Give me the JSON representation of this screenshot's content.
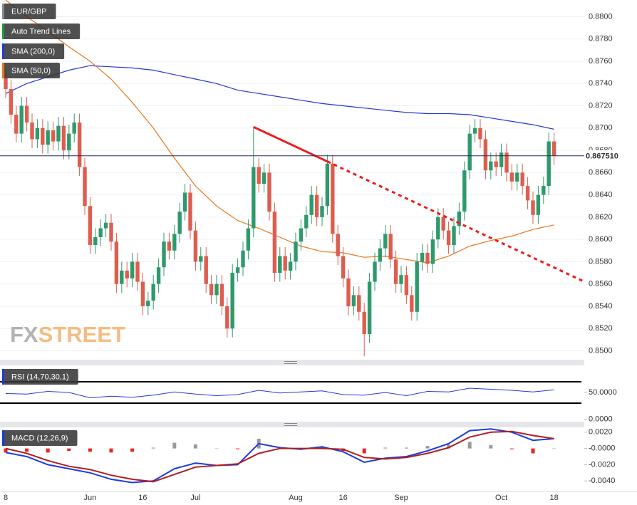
{
  "chart_data": {
    "type": "candlestick",
    "legend": [
      {
        "name": "EUR/GBP",
        "color": "#888888"
      },
      {
        "name": "Auto Trend Lines",
        "color": "#1f9a3a"
      },
      {
        "name": "SMA (200,0)",
        "color": "#2238d8"
      },
      {
        "name": "SMA (50,0)",
        "color": "#e8761c"
      }
    ],
    "watermark": [
      "FX",
      "STREET"
    ],
    "up_color": "#2e9a6c",
    "down_color": "#dd5d4f",
    "categories": [
      "8",
      null,
      null,
      null,
      null,
      null,
      null,
      null,
      null,
      null,
      null,
      null,
      null,
      null,
      null,
      null,
      "Jun",
      null,
      null,
      null,
      null,
      null,
      null,
      null,
      null,
      null,
      "16",
      null,
      null,
      null,
      null,
      null,
      null,
      null,
      null,
      null,
      "Jul",
      null,
      null,
      null,
      null,
      null,
      null,
      null,
      null,
      null,
      null,
      null,
      null,
      null,
      null,
      null,
      null,
      null,
      null,
      "Aug",
      null,
      null,
      null,
      null,
      null,
      null,
      null,
      null,
      "16",
      null,
      null,
      null,
      null,
      null,
      null,
      null,
      null,
      null,
      null,
      "Sep",
      null,
      null,
      null,
      null,
      null,
      null,
      null,
      null,
      null,
      null,
      null,
      null,
      null,
      null,
      null,
      null,
      null,
      null,
      "Oct",
      null,
      null,
      null,
      null,
      null,
      null,
      null,
      null,
      null,
      "18"
    ],
    "ohlc": [
      [
        0.8745,
        0.8753,
        0.8727,
        0.8735
      ],
      [
        0.8735,
        0.8743,
        0.8704,
        0.8712
      ],
      [
        0.8712,
        0.872,
        0.8687,
        0.8695
      ],
      [
        0.8695,
        0.8728,
        0.8687,
        0.872
      ],
      [
        0.872,
        0.8728,
        0.8697,
        0.8705
      ],
      [
        0.8705,
        0.8713,
        0.8682,
        0.869
      ],
      [
        0.869,
        0.8708,
        0.8682,
        0.87
      ],
      [
        0.87,
        0.8708,
        0.8677,
        0.8685
      ],
      [
        0.8685,
        0.8706,
        0.8677,
        0.8698
      ],
      [
        0.8698,
        0.8706,
        0.868,
        0.8688
      ],
      [
        0.8688,
        0.871,
        0.868,
        0.8702
      ],
      [
        0.8702,
        0.871,
        0.8672,
        0.868
      ],
      [
        0.868,
        0.8703,
        0.8672,
        0.8695
      ],
      [
        0.8695,
        0.8713,
        0.8687,
        0.8705
      ],
      [
        0.8705,
        0.8713,
        0.8657,
        0.8665
      ],
      [
        0.8665,
        0.8673,
        0.8622,
        0.863
      ],
      [
        0.863,
        0.8638,
        0.8587,
        0.8595
      ],
      [
        0.8595,
        0.861,
        0.8587,
        0.8602
      ],
      [
        0.8602,
        0.8618,
        0.8594,
        0.861
      ],
      [
        0.861,
        0.8623,
        0.8602,
        0.8615
      ],
      [
        0.8615,
        0.8623,
        0.859,
        0.8598
      ],
      [
        0.8598,
        0.8606,
        0.8552,
        0.856
      ],
      [
        0.856,
        0.858,
        0.8552,
        0.8572
      ],
      [
        0.8572,
        0.858,
        0.8557,
        0.8565
      ],
      [
        0.8565,
        0.8588,
        0.8557,
        0.858
      ],
      [
        0.858,
        0.8588,
        0.8554,
        0.8562
      ],
      [
        0.8562,
        0.857,
        0.8532,
        0.854
      ],
      [
        0.854,
        0.8553,
        0.8532,
        0.8545
      ],
      [
        0.8545,
        0.8568,
        0.8537,
        0.856
      ],
      [
        0.856,
        0.8583,
        0.8552,
        0.8575
      ],
      [
        0.8575,
        0.8606,
        0.8567,
        0.8598
      ],
      [
        0.8598,
        0.8606,
        0.8582,
        0.859
      ],
      [
        0.859,
        0.8613,
        0.8582,
        0.8605
      ],
      [
        0.8605,
        0.8633,
        0.8597,
        0.8625
      ],
      [
        0.8625,
        0.865,
        0.8617,
        0.8642
      ],
      [
        0.8642,
        0.865,
        0.86,
        0.8608
      ],
      [
        0.8608,
        0.8616,
        0.8572,
        0.858
      ],
      [
        0.858,
        0.8593,
        0.8572,
        0.8585
      ],
      [
        0.8585,
        0.8593,
        0.8552,
        0.856
      ],
      [
        0.856,
        0.8568,
        0.8542,
        0.855
      ],
      [
        0.855,
        0.8568,
        0.8542,
        0.856
      ],
      [
        0.856,
        0.8568,
        0.8532,
        0.854
      ],
      [
        0.854,
        0.8548,
        0.8512,
        0.852
      ],
      [
        0.852,
        0.8578,
        0.8512,
        0.857
      ],
      [
        0.857,
        0.8583,
        0.8562,
        0.8575
      ],
      [
        0.8575,
        0.8598,
        0.8567,
        0.859
      ],
      [
        0.859,
        0.8618,
        0.8582,
        0.861
      ],
      [
        0.861,
        0.8701,
        0.8602,
        0.8665
      ],
      [
        0.8665,
        0.8673,
        0.8642,
        0.865
      ],
      [
        0.865,
        0.8668,
        0.8642,
        0.866
      ],
      [
        0.866,
        0.8668,
        0.8617,
        0.8625
      ],
      [
        0.8625,
        0.8633,
        0.8562,
        0.857
      ],
      [
        0.857,
        0.8593,
        0.8562,
        0.8585
      ],
      [
        0.8585,
        0.8593,
        0.8564,
        0.8572
      ],
      [
        0.8572,
        0.8588,
        0.8564,
        0.858
      ],
      [
        0.858,
        0.8606,
        0.8572,
        0.8598
      ],
      [
        0.8598,
        0.8618,
        0.859,
        0.861
      ],
      [
        0.861,
        0.863,
        0.8602,
        0.8622
      ],
      [
        0.8622,
        0.8648,
        0.8614,
        0.864
      ],
      [
        0.864,
        0.8648,
        0.8612,
        0.862
      ],
      [
        0.862,
        0.8638,
        0.8612,
        0.863
      ],
      [
        0.863,
        0.8676,
        0.8622,
        0.8668
      ],
      [
        0.8668,
        0.8676,
        0.8597,
        0.8605
      ],
      [
        0.8605,
        0.8613,
        0.8577,
        0.8585
      ],
      [
        0.8585,
        0.8593,
        0.8557,
        0.8565
      ],
      [
        0.8565,
        0.8573,
        0.8532,
        0.854
      ],
      [
        0.854,
        0.8558,
        0.8532,
        0.855
      ],
      [
        0.855,
        0.8558,
        0.8527,
        0.8535
      ],
      [
        0.8535,
        0.8543,
        0.8495,
        0.8515
      ],
      [
        0.8515,
        0.857,
        0.8507,
        0.8562
      ],
      [
        0.8562,
        0.8588,
        0.8554,
        0.858
      ],
      [
        0.858,
        0.86,
        0.8572,
        0.8592
      ],
      [
        0.8592,
        0.8613,
        0.8584,
        0.8605
      ],
      [
        0.8605,
        0.8613,
        0.8574,
        0.8582
      ],
      [
        0.8582,
        0.859,
        0.8552,
        0.856
      ],
      [
        0.856,
        0.8576,
        0.8552,
        0.8568
      ],
      [
        0.8568,
        0.8576,
        0.8542,
        0.855
      ],
      [
        0.855,
        0.8558,
        0.8527,
        0.8535
      ],
      [
        0.8535,
        0.8588,
        0.8527,
        0.858
      ],
      [
        0.858,
        0.8596,
        0.8572,
        0.8588
      ],
      [
        0.8588,
        0.8596,
        0.857,
        0.8578
      ],
      [
        0.8578,
        0.8608,
        0.857,
        0.86
      ],
      [
        0.86,
        0.8628,
        0.8592,
        0.862
      ],
      [
        0.862,
        0.8628,
        0.86,
        0.8608
      ],
      [
        0.8608,
        0.8616,
        0.8587,
        0.8595
      ],
      [
        0.8595,
        0.862,
        0.8587,
        0.8612
      ],
      [
        0.8612,
        0.8633,
        0.8604,
        0.8625
      ],
      [
        0.8625,
        0.867,
        0.8617,
        0.8662
      ],
      [
        0.8662,
        0.8703,
        0.8654,
        0.8695
      ],
      [
        0.8695,
        0.8708,
        0.8687,
        0.87
      ],
      [
        0.87,
        0.8708,
        0.8682,
        0.869
      ],
      [
        0.869,
        0.8698,
        0.8654,
        0.8662
      ],
      [
        0.8662,
        0.8678,
        0.8654,
        0.867
      ],
      [
        0.867,
        0.8678,
        0.8657,
        0.8665
      ],
      [
        0.8665,
        0.8686,
        0.8657,
        0.8678
      ],
      [
        0.8678,
        0.8686,
        0.8652,
        0.866
      ],
      [
        0.866,
        0.8668,
        0.8644,
        0.8652
      ],
      [
        0.8652,
        0.8668,
        0.8644,
        0.866
      ],
      [
        0.866,
        0.8668,
        0.864,
        0.8648
      ],
      [
        0.8648,
        0.8656,
        0.8627,
        0.8635
      ],
      [
        0.8635,
        0.8643,
        0.8614,
        0.8622
      ],
      [
        0.8622,
        0.8648,
        0.8614,
        0.864
      ],
      [
        0.864,
        0.8656,
        0.8632,
        0.8648
      ],
      [
        0.8648,
        0.8696,
        0.864,
        0.8688
      ],
      [
        0.8688,
        0.8696,
        0.8667,
        0.8675
      ]
    ],
    "ylim": [
      0.8492,
      0.8815
    ],
    "yticks": [
      {
        "value": 0.88,
        "label": "0.8800"
      },
      {
        "value": 0.878,
        "label": "0.8780"
      },
      {
        "value": 0.876,
        "label": "0.8760"
      },
      {
        "value": 0.874,
        "label": "0.8740"
      },
      {
        "value": 0.872,
        "label": "0.8720"
      },
      {
        "value": 0.87,
        "label": "0.8700"
      },
      {
        "value": 0.868,
        "label": "0.8680"
      },
      {
        "value": 0.866,
        "label": "0.8660"
      },
      {
        "value": 0.864,
        "label": "0.8640"
      },
      {
        "value": 0.862,
        "label": "0.8620"
      },
      {
        "value": 0.86,
        "label": "0.8600"
      },
      {
        "value": 0.858,
        "label": "0.8580"
      },
      {
        "value": 0.856,
        "label": "0.8560"
      },
      {
        "value": 0.854,
        "label": "0.8540"
      },
      {
        "value": 0.852,
        "label": "0.8520"
      },
      {
        "value": 0.85,
        "label": "0.8500"
      }
    ],
    "grid": true,
    "last_price": {
      "value": 0.86751,
      "label": "0.867510",
      "color": "#1f2b5e"
    },
    "trendline": {
      "x": [
        47,
        61
      ],
      "values": [
        0.8701,
        0.867
      ],
      "color": "#ee1c1c"
    },
    "sma": [
      {
        "name": "SMA (200,0)",
        "color": "#2238d8",
        "x": [
          0,
          4,
          8,
          12,
          16,
          20,
          24,
          28,
          32,
          36,
          40,
          44,
          48,
          52,
          56,
          60,
          64,
          68,
          72,
          76,
          80,
          84,
          88,
          92,
          96,
          100,
          104
        ],
        "values": [
          0.8731,
          0.874,
          0.8746,
          0.8752,
          0.8756,
          0.8755,
          0.8754,
          0.8752,
          0.8748,
          0.8744,
          0.874,
          0.8734,
          0.8731,
          0.8728,
          0.8725,
          0.8722,
          0.872,
          0.8718,
          0.8716,
          0.8714,
          0.8713,
          0.8713,
          0.8712,
          0.8709,
          0.8706,
          0.8703,
          0.8699
        ]
      },
      {
        "name": "SMA (50,0)",
        "color": "#e8761c",
        "x": [
          0,
          4,
          8,
          12,
          16,
          20,
          24,
          28,
          32,
          36,
          40,
          44,
          48,
          52,
          56,
          60,
          64,
          68,
          72,
          76,
          80,
          84,
          88,
          92,
          96,
          100,
          104
        ],
        "values": [
          0.8815,
          0.88,
          0.8787,
          0.8773,
          0.876,
          0.8744,
          0.8723,
          0.87,
          0.8673,
          0.8648,
          0.863,
          0.8617,
          0.861,
          0.8602,
          0.8594,
          0.8589,
          0.8588,
          0.8584,
          0.8585,
          0.8582,
          0.8579,
          0.8585,
          0.8594,
          0.8599,
          0.8603,
          0.8609,
          0.8613
        ]
      }
    ],
    "rsi": {
      "title": "RSI (14,70,30,1)",
      "color": "#2238d8",
      "x": [
        0,
        4,
        8,
        12,
        16,
        20,
        24,
        28,
        32,
        36,
        40,
        44,
        48,
        52,
        56,
        60,
        64,
        68,
        72,
        76,
        80,
        84,
        88,
        92,
        96,
        100,
        104
      ],
      "values": [
        48,
        47,
        52,
        50,
        40,
        43,
        41,
        45,
        51,
        47,
        44,
        46,
        54,
        49,
        51,
        53,
        46,
        45,
        50,
        44,
        52,
        51,
        58,
        56,
        54,
        51,
        55
      ],
      "bands": [
        70,
        30
      ],
      "ylim": [
        0,
        100
      ],
      "yticks": [
        {
          "value": 50,
          "label": "50.0000"
        },
        {
          "value": 0,
          "label": "0.0000"
        }
      ]
    },
    "macd": {
      "title": "MACD (12,26,9)",
      "x": [
        0,
        4,
        8,
        12,
        16,
        20,
        24,
        28,
        32,
        36,
        40,
        44,
        48,
        52,
        56,
        60,
        64,
        68,
        72,
        76,
        80,
        84,
        88,
        92,
        96,
        100,
        104
      ],
      "series": [
        {
          "name": "MACD",
          "color": "#1a3be0",
          "values": [
            -0.0005,
            -0.001,
            -0.002,
            -0.0025,
            -0.003,
            -0.0038,
            -0.0042,
            -0.004,
            -0.0025,
            -0.0018,
            -0.0021,
            -0.002,
            0.0006,
            0.0001,
            -0.0001,
            0.0002,
            -0.0004,
            -0.0017,
            -0.0012,
            -0.001,
            -0.0003,
            0.0006,
            0.0022,
            0.0024,
            0.002,
            0.001,
            0.0012
          ]
        },
        {
          "name": "Signal",
          "color": "#b01e1e",
          "values": [
            0.0,
            -0.0006,
            -0.0015,
            -0.0022,
            -0.0026,
            -0.0033,
            -0.0038,
            -0.0041,
            -0.0032,
            -0.0023,
            -0.0021,
            -0.0019,
            -0.0006,
            0.0,
            0.0,
            0.0,
            -0.0001,
            -0.0011,
            -0.0013,
            -0.0011,
            -0.0006,
            0.0001,
            0.0014,
            0.002,
            0.0021,
            0.0016,
            0.0012
          ]
        }
      ],
      "histogram": [
        -0.0005,
        -0.0004,
        -0.0005,
        -0.0003,
        -0.0004,
        -0.0005,
        -0.0004,
        0.0001,
        0.0007,
        0.0005,
        0.0,
        -0.0001,
        0.0012,
        0.0001,
        -0.0001,
        0.0002,
        -0.0003,
        -0.0006,
        0.0001,
        0.0001,
        0.0003,
        0.0005,
        0.0008,
        0.0004,
        -0.0001,
        -0.0006,
        0.0
      ],
      "hist_colors": [
        "#9a9a9a",
        "#ee2222"
      ],
      "ylim": [
        -0.0053,
        0.0026
      ],
      "yticks": [
        {
          "value": 0.002,
          "label": "0.0020"
        },
        {
          "value": 0,
          "label": "-0.0000"
        },
        {
          "value": -0.002,
          "label": "-0.0020"
        },
        {
          "value": -0.004,
          "label": "-0.0040"
        }
      ]
    }
  }
}
